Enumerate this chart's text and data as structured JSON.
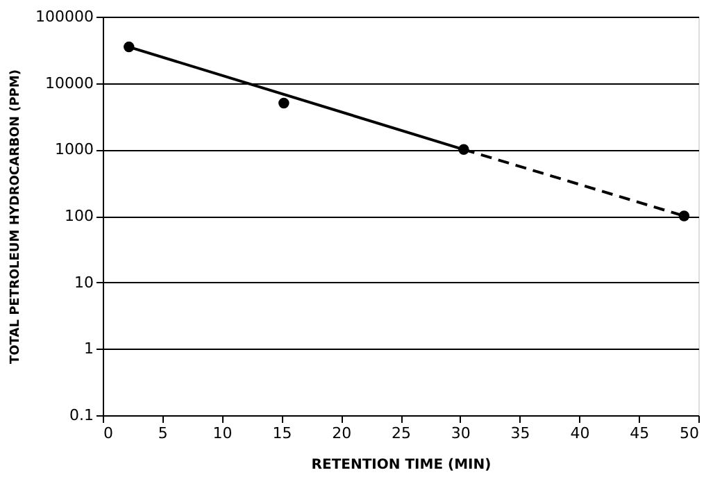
{
  "chart_data": {
    "type": "line",
    "xlabel": "RETENTION TIME (MIN)",
    "ylabel": "TOTAL PETROLEUM HYDROCARBON (PPM)",
    "log": "y",
    "grid": "y",
    "xlim": [
      0,
      50
    ],
    "xticks": [
      0,
      5,
      10,
      15,
      20,
      25,
      30,
      35,
      40,
      45,
      50
    ],
    "ylim": [
      0.1,
      100000
    ],
    "yticks": [
      0.1,
      1,
      10,
      100,
      1000,
      10000,
      100000
    ],
    "series": [
      {
        "type": "scatter",
        "color": "#000000",
        "marker": "circle",
        "x": [
          2.2,
          15.2,
          30.3,
          48.8
        ],
        "values": [
          35000,
          5000,
          1000,
          100
        ]
      },
      {
        "color": "#000000",
        "line_style": "solid",
        "x": [
          2.2,
          30.3
        ],
        "values": [
          35000,
          1000
        ]
      },
      {
        "color": "#000000",
        "line_style": "dashed",
        "x": [
          30.3,
          48.8
        ],
        "values": [
          1000,
          100
        ]
      }
    ]
  }
}
